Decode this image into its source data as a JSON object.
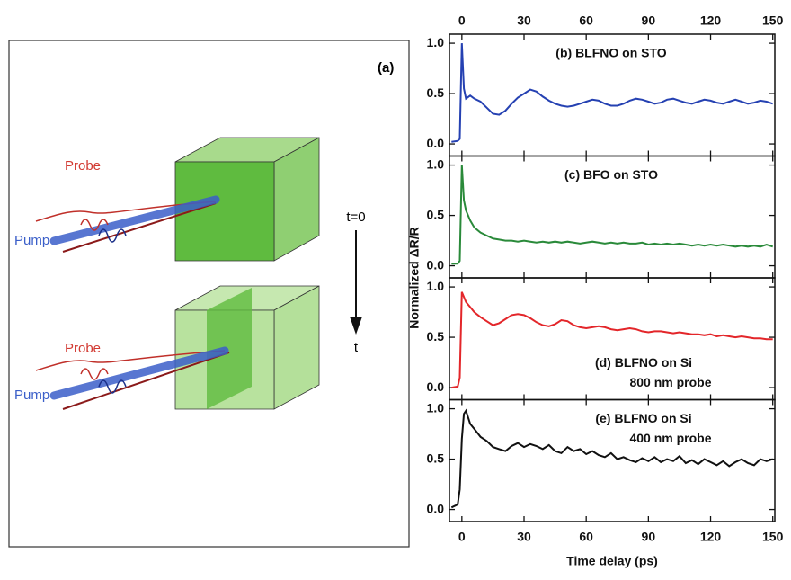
{
  "diagram": {
    "panel_label": "(a)",
    "time_start": "t=0",
    "time_end": "t",
    "beams": [
      {
        "probe": "Probe",
        "pump": "Pump"
      },
      {
        "probe": "Probe",
        "pump": "Pump"
      }
    ]
  },
  "chart_data": [
    {
      "type": "line",
      "annotations": [
        "(b)  BLFNO on STO"
      ],
      "color": "#2541b2",
      "ylabel": "Normalized  ΔR/R",
      "xlim": [
        -6,
        151
      ],
      "xticks": [
        0,
        30,
        60,
        90,
        120,
        150
      ],
      "ylim": [
        -0.12,
        1.09
      ],
      "yticks": [
        {
          "value": 0,
          "label": "0.0"
        },
        0.5,
        {
          "value": 1,
          "label": "1.0"
        }
      ],
      "x": [
        -5,
        -2,
        -1,
        0,
        1,
        2,
        4,
        6,
        9,
        12,
        15,
        18,
        21,
        24,
        27,
        30,
        33,
        36,
        39,
        42,
        45,
        48,
        51,
        54,
        57,
        60,
        63,
        66,
        69,
        72,
        75,
        78,
        81,
        84,
        87,
        90,
        93,
        96,
        99,
        102,
        105,
        108,
        111,
        114,
        117,
        120,
        123,
        126,
        129,
        132,
        135,
        138,
        141,
        144,
        147,
        150
      ],
      "values": [
        0.02,
        0.03,
        0.05,
        1.0,
        0.55,
        0.45,
        0.48,
        0.45,
        0.42,
        0.36,
        0.3,
        0.29,
        0.33,
        0.4,
        0.46,
        0.5,
        0.54,
        0.52,
        0.47,
        0.43,
        0.4,
        0.38,
        0.37,
        0.38,
        0.4,
        0.42,
        0.44,
        0.43,
        0.4,
        0.38,
        0.38,
        0.4,
        0.43,
        0.45,
        0.44,
        0.42,
        0.4,
        0.41,
        0.44,
        0.45,
        0.43,
        0.41,
        0.4,
        0.42,
        0.44,
        0.43,
        0.41,
        0.4,
        0.42,
        0.44,
        0.42,
        0.4,
        0.41,
        0.43,
        0.42,
        0.4
      ]
    },
    {
      "type": "line",
      "annotations": [
        "(c)  BFO on STO"
      ],
      "color": "#2a8a3a",
      "xlim": [
        -6,
        151
      ],
      "xticks": [
        0,
        30,
        60,
        90,
        120,
        150
      ],
      "ylim": [
        -0.12,
        1.09
      ],
      "yticks": [
        {
          "value": 0,
          "label": "0.0"
        },
        0.5,
        {
          "value": 1,
          "label": "1.0"
        }
      ],
      "x": [
        -5,
        -2,
        -1,
        0,
        1,
        2,
        4,
        6,
        9,
        12,
        15,
        18,
        21,
        24,
        27,
        30,
        33,
        36,
        39,
        42,
        45,
        48,
        51,
        54,
        57,
        60,
        63,
        66,
        69,
        72,
        75,
        78,
        81,
        84,
        87,
        90,
        93,
        96,
        99,
        102,
        105,
        108,
        111,
        114,
        117,
        120,
        123,
        126,
        129,
        132,
        135,
        138,
        141,
        144,
        147,
        150
      ],
      "values": [
        0.02,
        0.02,
        0.05,
        1.0,
        0.65,
        0.55,
        0.45,
        0.38,
        0.33,
        0.3,
        0.27,
        0.26,
        0.25,
        0.25,
        0.24,
        0.25,
        0.24,
        0.23,
        0.24,
        0.23,
        0.24,
        0.23,
        0.24,
        0.23,
        0.22,
        0.23,
        0.24,
        0.23,
        0.22,
        0.23,
        0.22,
        0.23,
        0.22,
        0.22,
        0.23,
        0.21,
        0.22,
        0.21,
        0.22,
        0.21,
        0.22,
        0.21,
        0.2,
        0.21,
        0.2,
        0.21,
        0.2,
        0.21,
        0.2,
        0.19,
        0.2,
        0.19,
        0.2,
        0.19,
        0.21,
        0.19
      ]
    },
    {
      "type": "line",
      "annotations": [
        "(d)  BLFNO on Si",
        "800 nm probe"
      ],
      "color": "#e3262a",
      "xlim": [
        -6,
        151
      ],
      "xticks": [
        0,
        30,
        60,
        90,
        120,
        150
      ],
      "ylim": [
        -0.12,
        1.09
      ],
      "yticks": [
        {
          "value": 0,
          "label": "0.0"
        },
        0.5,
        {
          "value": 1,
          "label": "1.0"
        }
      ],
      "x": [
        -5,
        -2,
        -1,
        0,
        1,
        2,
        4,
        6,
        9,
        12,
        15,
        18,
        21,
        24,
        27,
        30,
        33,
        36,
        39,
        42,
        45,
        48,
        51,
        54,
        57,
        60,
        63,
        66,
        69,
        72,
        75,
        78,
        81,
        84,
        87,
        90,
        93,
        96,
        99,
        102,
        105,
        108,
        111,
        114,
        117,
        120,
        123,
        126,
        129,
        132,
        135,
        138,
        141,
        144,
        147,
        150
      ],
      "values": [
        0.0,
        0.01,
        0.1,
        0.95,
        0.9,
        0.85,
        0.8,
        0.75,
        0.7,
        0.66,
        0.62,
        0.64,
        0.68,
        0.72,
        0.73,
        0.72,
        0.69,
        0.65,
        0.62,
        0.61,
        0.63,
        0.67,
        0.66,
        0.62,
        0.6,
        0.59,
        0.6,
        0.61,
        0.6,
        0.58,
        0.57,
        0.58,
        0.59,
        0.58,
        0.56,
        0.55,
        0.56,
        0.56,
        0.55,
        0.54,
        0.55,
        0.54,
        0.53,
        0.53,
        0.52,
        0.53,
        0.51,
        0.52,
        0.51,
        0.5,
        0.51,
        0.5,
        0.49,
        0.49,
        0.48,
        0.48
      ]
    },
    {
      "type": "line",
      "annotations": [
        "(e)  BLFNO on Si",
        "400 nm probe"
      ],
      "color": "#111111",
      "xlabel": "Time delay (ps)",
      "xlim": [
        -6,
        151
      ],
      "xticks": [
        0,
        30,
        60,
        90,
        120,
        150
      ],
      "ylim": [
        -0.12,
        1.09
      ],
      "yticks": [
        {
          "value": 0,
          "label": "0.0"
        },
        0.5,
        {
          "value": 1,
          "label": "1.0"
        }
      ],
      "x": [
        -5,
        -2,
        -1,
        0,
        1,
        2,
        4,
        6,
        9,
        12,
        15,
        18,
        21,
        24,
        27,
        30,
        33,
        36,
        39,
        42,
        45,
        48,
        51,
        54,
        57,
        60,
        63,
        66,
        69,
        72,
        75,
        78,
        81,
        84,
        87,
        90,
        93,
        96,
        99,
        102,
        105,
        108,
        111,
        114,
        117,
        120,
        123,
        126,
        129,
        132,
        135,
        138,
        141,
        144,
        147,
        150
      ],
      "values": [
        0.02,
        0.05,
        0.2,
        0.7,
        0.95,
        0.98,
        0.85,
        0.8,
        0.72,
        0.68,
        0.62,
        0.6,
        0.58,
        0.63,
        0.66,
        0.62,
        0.65,
        0.63,
        0.6,
        0.64,
        0.58,
        0.56,
        0.62,
        0.58,
        0.6,
        0.55,
        0.58,
        0.54,
        0.52,
        0.56,
        0.5,
        0.52,
        0.49,
        0.47,
        0.51,
        0.48,
        0.52,
        0.47,
        0.5,
        0.48,
        0.53,
        0.46,
        0.49,
        0.45,
        0.5,
        0.47,
        0.44,
        0.48,
        0.43,
        0.47,
        0.5,
        0.46,
        0.44,
        0.5,
        0.48,
        0.5
      ]
    }
  ]
}
